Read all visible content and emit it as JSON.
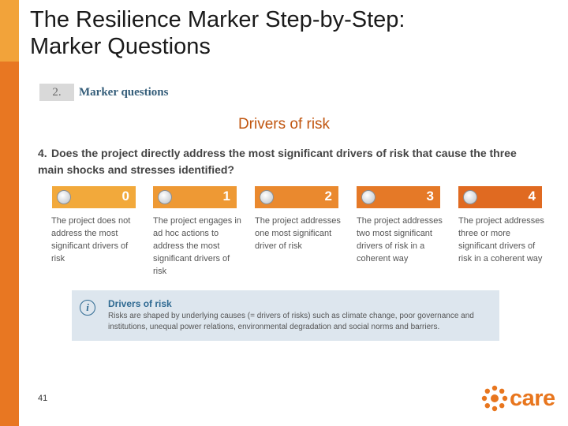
{
  "slide": {
    "title": "The Resilience Marker Step-by-Step:\nMarker Questions",
    "subtitle": "Drivers of risk",
    "page_number": "41"
  },
  "section": {
    "number": "2.",
    "label": "Marker questions"
  },
  "question": {
    "number": "4.",
    "text": "Does the project directly address the most significant drivers of risk that cause the three main shocks and stresses identified?"
  },
  "options": [
    {
      "score": "0",
      "color": "#f2a93b",
      "description": "The project does not address the most significant drivers of risk"
    },
    {
      "score": "1",
      "color": "#ee9934",
      "description": "The project engages in ad hoc actions to address the most significant drivers of risk"
    },
    {
      "score": "2",
      "color": "#ea892e",
      "description": "The project addresses one most significant driver of risk"
    },
    {
      "score": "3",
      "color": "#e57927",
      "description": "The project addresses two most significant drivers of risk in a coherent way"
    },
    {
      "score": "4",
      "color": "#e06a21",
      "description": "The project addresses three or more significant drivers of risk in a coherent way"
    }
  ],
  "info_box": {
    "icon": "info-icon",
    "title": "Drivers of risk",
    "text": "Risks are shaped by underlying causes (= drivers of risks) such as climate change, poor governance and institutions, unequal power relations, environmental degradation and social norms and barriers."
  },
  "logo": {
    "text": "care",
    "color": "#e8761e"
  },
  "colors": {
    "accent": "#e87722",
    "accent_light": "#f2a33a",
    "subtitle": "#c0550f",
    "info_bg": "#dde6ee"
  }
}
